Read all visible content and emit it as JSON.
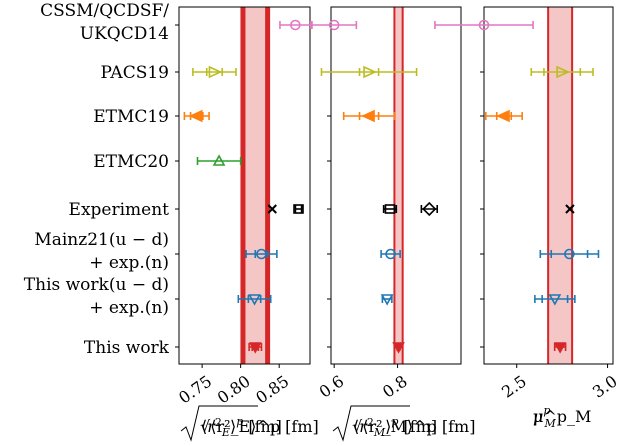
{
  "colors": {
    "pink": "#e377c2",
    "olive": "#bcbd22",
    "orange": "#ff7f0e",
    "green": "#2ca02c",
    "black": "#000000",
    "blue": "#1f77b4",
    "red": "#d62728",
    "band_fill": "#f4c6c6"
  },
  "rows": [
    {
      "label_lines": [
        "CSSM/QCDSF/",
        "UKQCD14"
      ],
      "color": "pink",
      "marker": "circle"
    },
    {
      "label_lines": [
        "PACS19"
      ],
      "color": "olive",
      "marker": "triangle-right"
    },
    {
      "label_lines": [
        "ETMC19"
      ],
      "color": "orange",
      "marker": "triangle-left"
    },
    {
      "label_lines": [
        "ETMC20"
      ],
      "color": "green",
      "marker": "triangle-up"
    },
    {
      "label_lines": [
        "Experiment"
      ],
      "color": "black",
      "marker": "x"
    },
    {
      "label_lines": [
        "Mainz21(u − d)",
        "+ exp.(n)"
      ],
      "color": "blue",
      "marker": "circle"
    },
    {
      "label_lines": [
        "This work(u − d)",
        "+ exp.(n)"
      ],
      "color": "blue",
      "marker": "triangle-down"
    },
    {
      "label_lines": [
        "This work"
      ],
      "color": "red",
      "marker": "triangle-down"
    }
  ],
  "chart_data": [
    {
      "type": "scatter",
      "xlabel": "√⟨r²_E⟩^p [fm]",
      "xlim": [
        0.72,
        0.89
      ],
      "xticks": [
        "0.75",
        "0.80",
        "0.85"
      ],
      "xtick_values": [
        0.75,
        0.8,
        0.85
      ],
      "band": {
        "center": 0.819,
        "half_width": 0.016
      },
      "series": [
        {
          "row": 0,
          "x": 0.871,
          "err": 0.02,
          "inner_err": 0.0
        },
        {
          "row": 1,
          "x": 0.766,
          "err": 0.028,
          "inner_err": 0.01
        },
        {
          "row": 2,
          "x": 0.743,
          "err": 0.016,
          "inner_err": 0.008
        },
        {
          "row": 3,
          "x": 0.772,
          "err": 0.028,
          "inner_err": 0.0
        },
        {
          "row": 4,
          "x": 0.841,
          "err": 0.0,
          "inner_err": 0.0
        },
        {
          "row": 4,
          "x": 0.8751,
          "err": 0.004,
          "inner_err": 0.0,
          "marker": "square"
        },
        {
          "row": 5,
          "x": 0.827,
          "err": 0.02,
          "inner_err": 0.008
        },
        {
          "row": 6,
          "x": 0.818,
          "err": 0.021,
          "inner_err": 0.008
        },
        {
          "row": 7,
          "x": 0.819,
          "err": 0.008,
          "inner_err": 0.004
        }
      ]
    },
    {
      "type": "scatter",
      "xlabel": "√⟨r²_M⟩^p [fm]",
      "xlim": [
        0.59,
        1.0
      ],
      "xticks": [
        "0.6",
        "0.8"
      ],
      "xtick_values": [
        0.6,
        0.8
      ],
      "band": {
        "center": 0.803,
        "half_width": 0.013
      },
      "series": [
        {
          "row": 0,
          "x": 0.6,
          "err": 0.07,
          "inner_err": 0.0
        },
        {
          "row": 1,
          "x": 0.71,
          "err": 0.15,
          "inner_err": 0.03
        },
        {
          "row": 2,
          "x": 0.71,
          "err": 0.08,
          "inner_err": 0.03
        },
        {
          "row": 4,
          "x": 0.776,
          "err": 0.02,
          "inner_err": 0.0,
          "marker": "square"
        },
        {
          "row": 4,
          "x": 0.9,
          "err": 0.025,
          "inner_err": 0.0,
          "marker": "diamond"
        },
        {
          "row": 5,
          "x": 0.778,
          "err": 0.03,
          "inner_err": 0.0
        },
        {
          "row": 6,
          "x": 0.767,
          "err": 0.015,
          "inner_err": 0.0
        },
        {
          "row": 7,
          "x": 0.803,
          "err": 0.004,
          "inner_err": 0.0
        }
      ]
    },
    {
      "type": "scatter",
      "xlabel": "μ^p_M",
      "xlim": [
        2.32,
        3.03
      ],
      "xticks": [
        "2.5",
        "3.0"
      ],
      "xtick_values": [
        2.5,
        3.0
      ],
      "band": {
        "center": 2.739,
        "half_width": 0.066
      },
      "series": [
        {
          "row": 0,
          "x": 2.32,
          "err": 0.27,
          "inner_err": 0.0
        },
        {
          "row": 1,
          "x": 2.75,
          "err": 0.17,
          "inner_err": 0.1
        },
        {
          "row": 2,
          "x": 2.43,
          "err": 0.1,
          "inner_err": 0.04
        },
        {
          "row": 4,
          "x": 2.793,
          "err": 0.0,
          "inner_err": 0.0
        },
        {
          "row": 5,
          "x": 2.79,
          "err": 0.16,
          "inner_err": 0.1
        },
        {
          "row": 6,
          "x": 2.71,
          "err": 0.11,
          "inner_err": 0.07
        },
        {
          "row": 7,
          "x": 2.739,
          "err": 0.03,
          "inner_err": 0.0
        }
      ]
    }
  ]
}
